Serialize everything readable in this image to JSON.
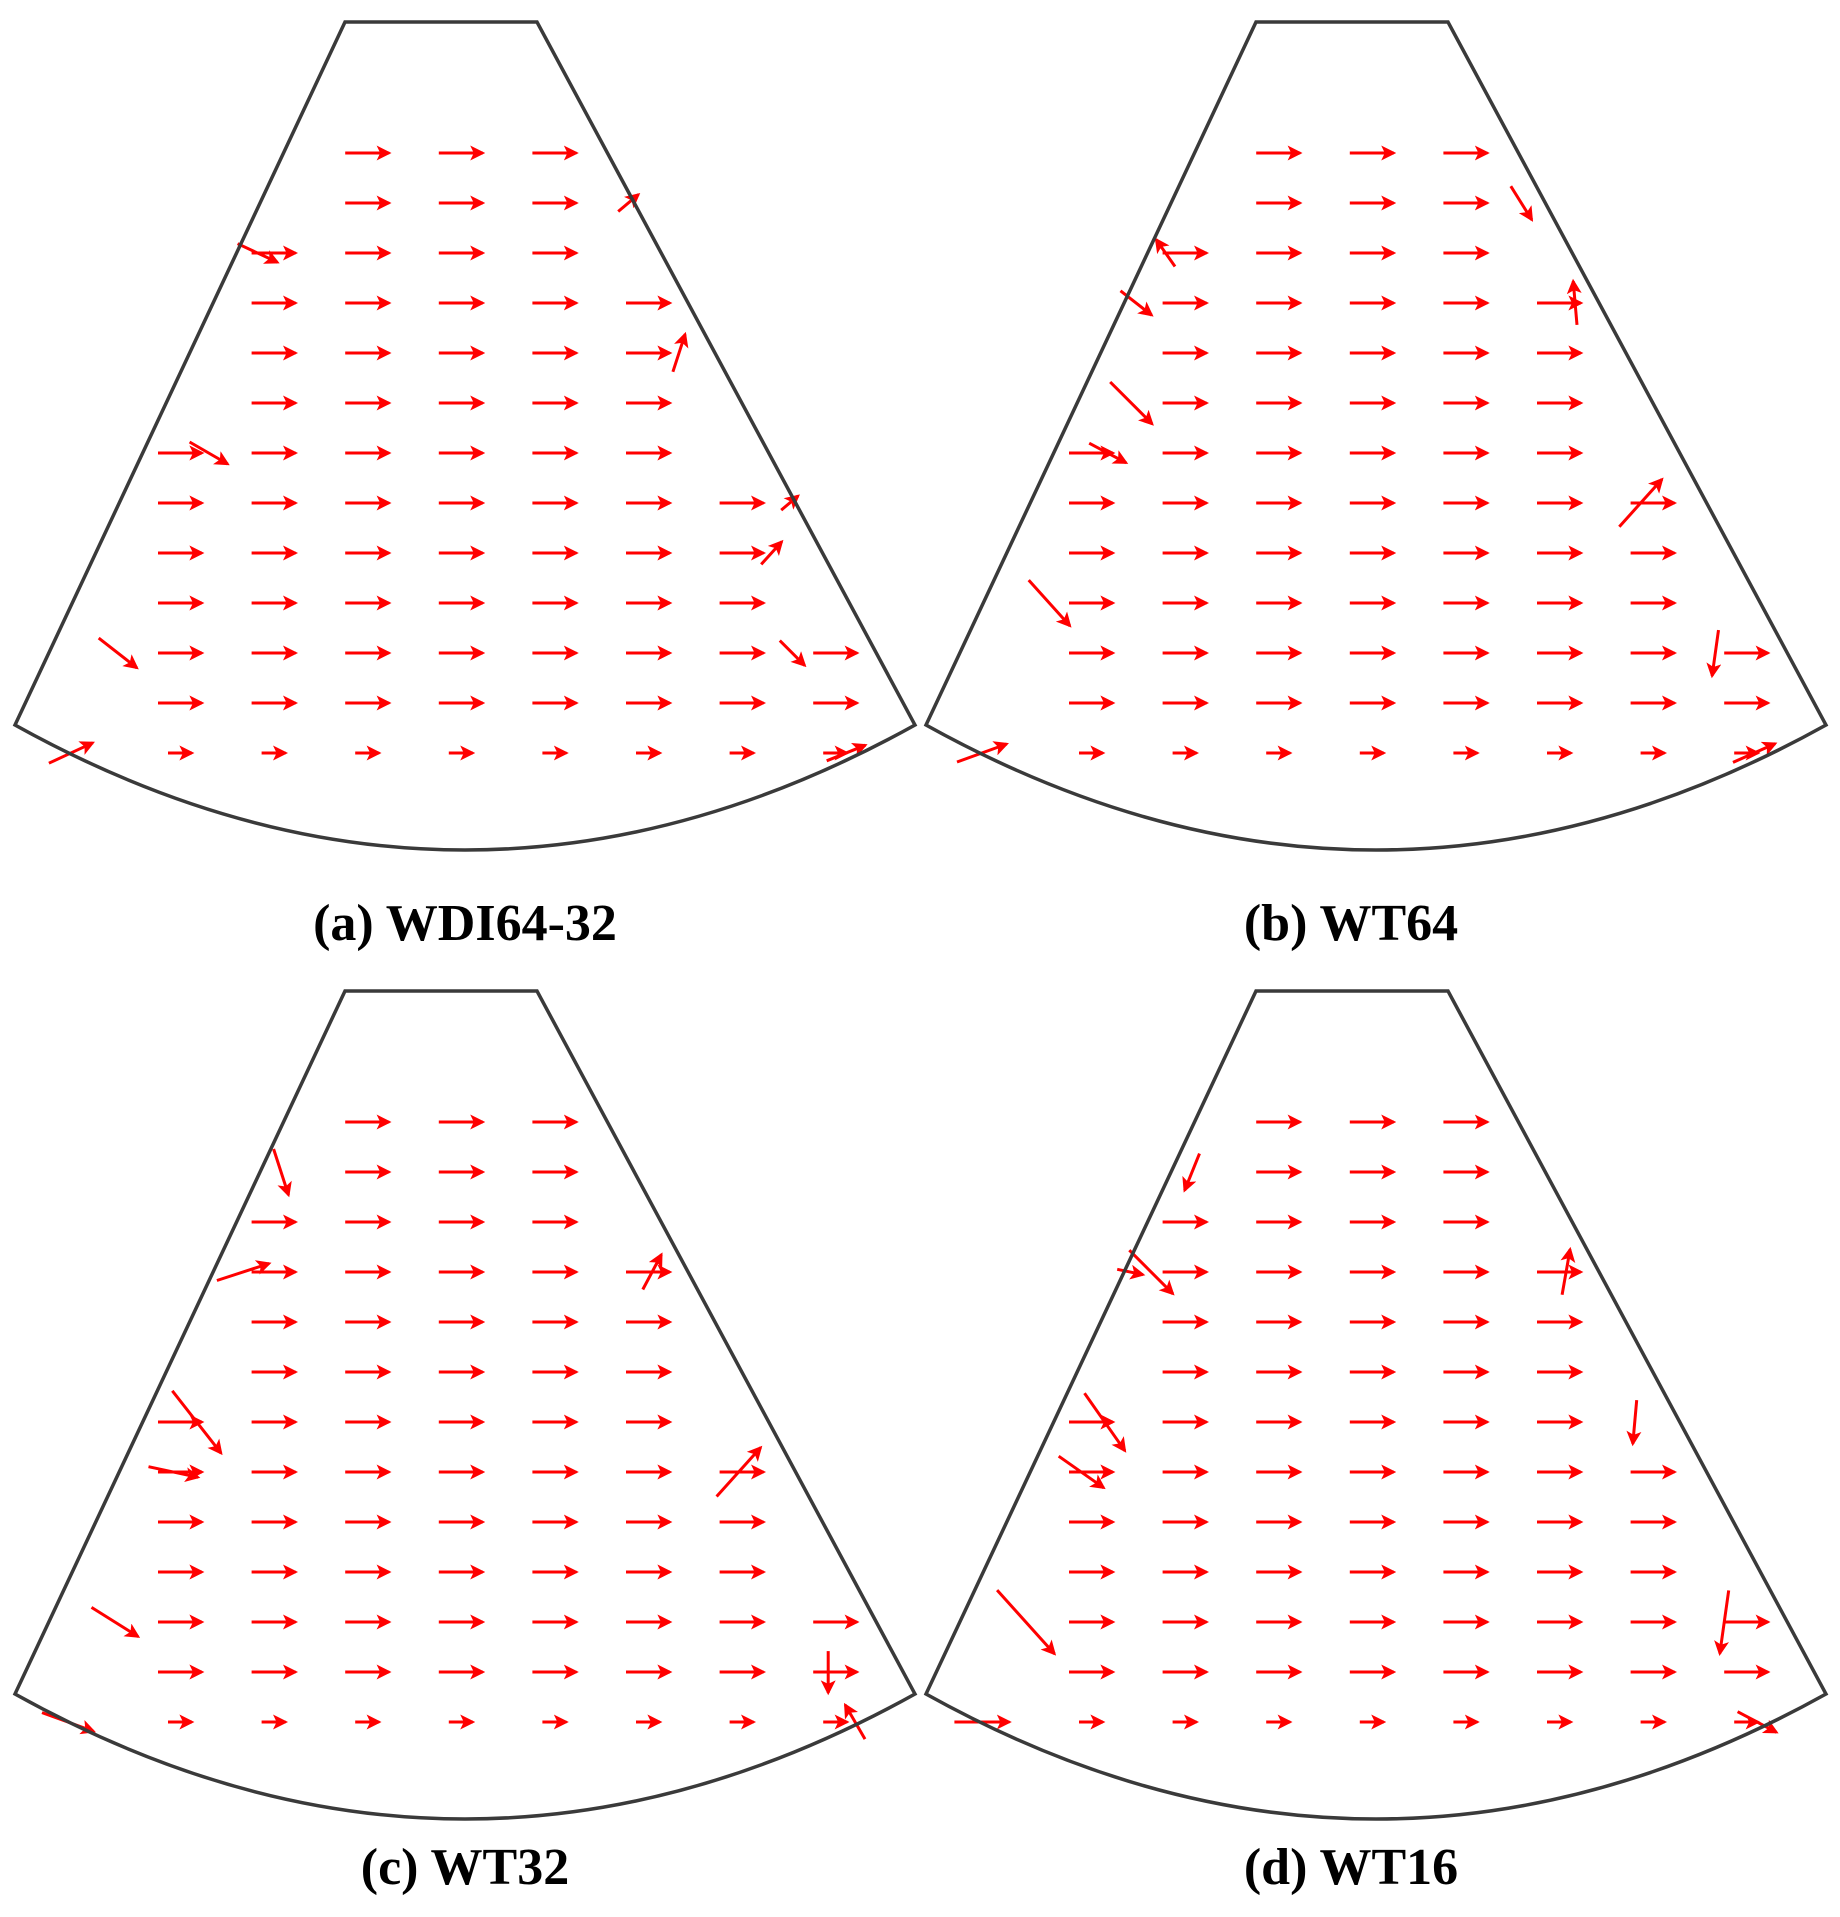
{
  "figure": {
    "sector_color": "#3a3a3a",
    "arrow_color": "#ff0000",
    "panels": [
      {
        "id": "a",
        "caption": "(a) WDI64-32",
        "irregular": [
          {
            "row": 1,
            "x": 0.1,
            "a": 40,
            "l": 0.6
          },
          {
            "row": 2,
            "x": -0.35,
            "a": -25,
            "l": 1.0
          },
          {
            "row": 4,
            "x": 0.6,
            "a": 72,
            "l": 0.9
          },
          {
            "row": 6,
            "x": -1.1,
            "a": -30,
            "l": 1.0
          },
          {
            "row": 8,
            "x": 0.85,
            "a": 48,
            "l": 0.7
          },
          {
            "row": 7,
            "x": 0.1,
            "a": 40,
            "l": 0.5
          },
          {
            "row": 10,
            "x": -1.15,
            "a": -38,
            "l": 1.1
          },
          {
            "row": 10,
            "x": 1.4,
            "a": -45,
            "l": 0.8
          },
          {
            "row": 12,
            "x": -1.15,
            "a": 25,
            "l": 1.1
          },
          {
            "row": 12,
            "x": 1.4,
            "a": 22,
            "l": 0.95
          }
        ]
      },
      {
        "id": "b",
        "caption": "(b) WT64",
        "irregular": [
          {
            "row": 1,
            "x": 0.4,
            "a": -58,
            "l": 0.9
          },
          {
            "row": 2,
            "x": -0.3,
            "a": 125,
            "l": 0.75
          },
          {
            "row": 3,
            "x": -0.2,
            "a": -38,
            "l": 0.9
          },
          {
            "row": 3,
            "x": 0.4,
            "a": 95,
            "l": 1.0
          },
          {
            "row": 5,
            "x": -0.9,
            "a": -45,
            "l": 1.35
          },
          {
            "row": 6,
            "x": -0.9,
            "a": -28,
            "l": 0.95
          },
          {
            "row": 7,
            "x": 1.1,
            "a": 48,
            "l": 1.45
          },
          {
            "row": 9,
            "x": -1.1,
            "a": -48,
            "l": 1.4
          },
          {
            "row": 10,
            "x": 1.2,
            "a": -98,
            "l": 1.05
          },
          {
            "row": 12,
            "x": -1.15,
            "a": 20,
            "l": 1.2
          },
          {
            "row": 12,
            "x": 1.45,
            "a": 24,
            "l": 1.05
          }
        ]
      },
      {
        "id": "c",
        "caption": "(c) WT32",
        "irregular": [
          {
            "row": 1,
            "x": -0.35,
            "a": -72,
            "l": 1.1
          },
          {
            "row": 3,
            "x": 0.6,
            "a": 62,
            "l": 0.9
          },
          {
            "row": 3,
            "x": -0.5,
            "a": 18,
            "l": 1.25
          },
          {
            "row": 6,
            "x": -0.9,
            "a": -52,
            "l": 1.8
          },
          {
            "row": 7,
            "x": -0.9,
            "a": -12,
            "l": 1.15
          },
          {
            "row": 7,
            "x": 0.95,
            "a": 48,
            "l": 1.5
          },
          {
            "row": 10,
            "x": -1.1,
            "a": -32,
            "l": 1.25
          },
          {
            "row": 11,
            "x": 1.25,
            "a": -90,
            "l": 0.95
          },
          {
            "row": 12,
            "x": -1.1,
            "a": -20,
            "l": 1.25
          },
          {
            "row": 12,
            "x": 1.25,
            "a": 120,
            "l": 0.9
          }
        ]
      },
      {
        "id": "d",
        "caption": "(d) WT16",
        "irregular": [
          {
            "row": 1,
            "x": -0.35,
            "a": -112,
            "l": 0.9
          },
          {
            "row": 3,
            "x": -0.45,
            "a": -45,
            "l": 1.4
          },
          {
            "row": 3,
            "x": -0.1,
            "a": -12,
            "l": 0.6
          },
          {
            "row": 3,
            "x": 0.55,
            "a": 80,
            "l": 1.05
          },
          {
            "row": 6,
            "x": -0.85,
            "a": -55,
            "l": 1.6
          },
          {
            "row": 6,
            "x": 0.75,
            "a": -95,
            "l": 1.0
          },
          {
            "row": 7,
            "x": -0.85,
            "a": -35,
            "l": 1.25
          },
          {
            "row": 10,
            "x": -1.1,
            "a": -48,
            "l": 1.95
          },
          {
            "row": 10,
            "x": 1.05,
            "a": -98,
            "l": 1.45
          },
          {
            "row": 12,
            "x": -1.15,
            "a": 0,
            "l": 1.25
          },
          {
            "row": 12,
            "x": 1.4,
            "a": -28,
            "l": 1.0
          }
        ]
      }
    ]
  }
}
